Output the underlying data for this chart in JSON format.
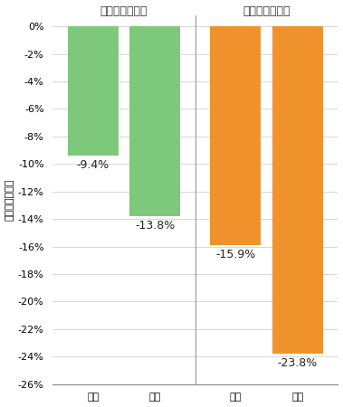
{
  "groups": [
    {
      "label": "コロナ受入なし",
      "months": [
        "４月",
        "５月"
      ],
      "values": [
        -9.4,
        -13.8
      ],
      "color": "#7dc87a",
      "bar_labels": [
        "-9.4%",
        "-13.8%"
      ]
    },
    {
      "label": "コロナ受入あり",
      "months": [
        "４月",
        "５月"
      ],
      "values": [
        -15.9,
        -23.8
      ],
      "color": "#f0922b",
      "bar_labels": [
        "-15.9%",
        "-23.8%"
      ]
    }
  ],
  "ylabel": "前年同月増減率",
  "ylim": [
    -26,
    0.8
  ],
  "yticks": [
    0,
    -2,
    -4,
    -6,
    -8,
    -10,
    -12,
    -14,
    -16,
    -18,
    -20,
    -22,
    -24,
    -26
  ],
  "ytick_labels": [
    "0%",
    "-2%",
    "-4%",
    "-6%",
    "-8%",
    "-10%",
    "-12%",
    "-14%",
    "-16%",
    "-18%",
    "-20%",
    "-22%",
    "-24%",
    "-26%"
  ],
  "background_color": "#ffffff",
  "grid_color": "#d0d0d0",
  "divider_color": "#999999",
  "bar_width": 0.82,
  "label_fontsize": 9,
  "ylabel_fontsize": 8,
  "tick_fontsize": 8,
  "value_label_fontsize": 9
}
